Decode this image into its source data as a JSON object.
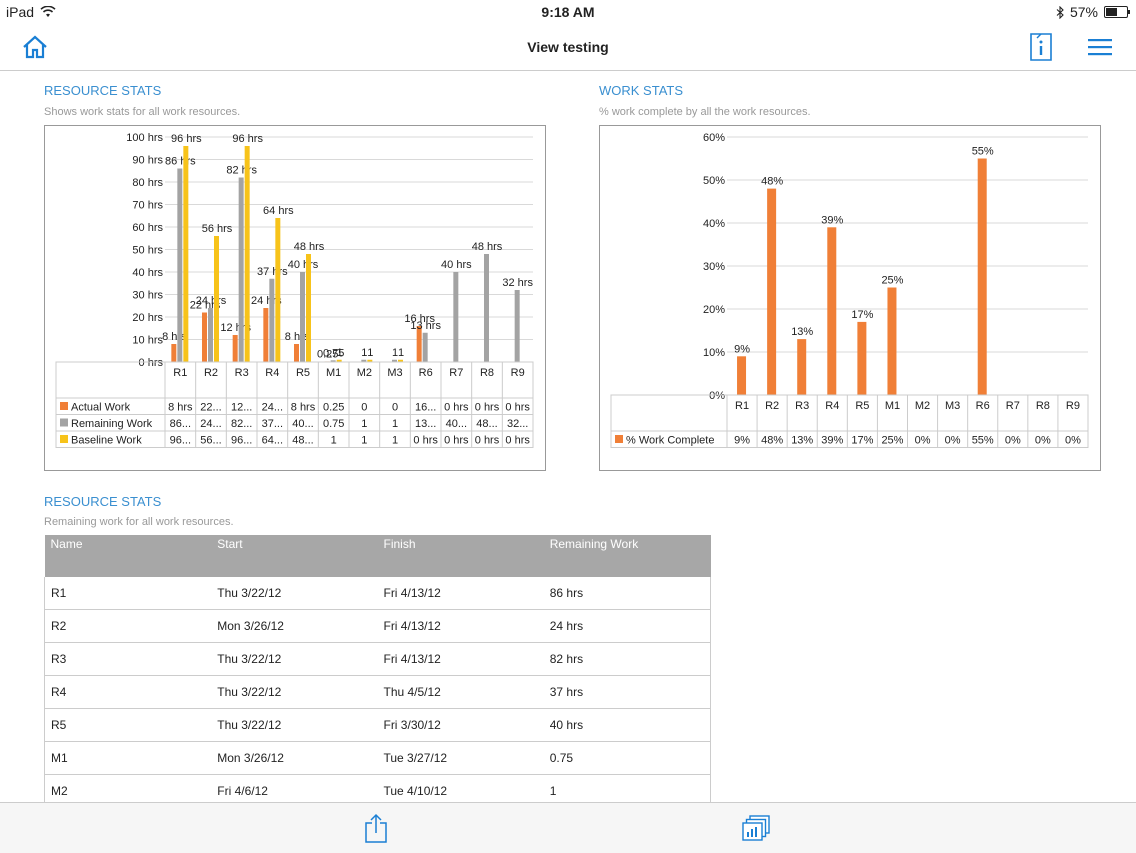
{
  "status": {
    "carrier": "iPad",
    "time": "9:18 AM",
    "battery": "57%",
    "battery_level": 0.57
  },
  "nav": {
    "title": "View testing"
  },
  "colors": {
    "accent": "#1a7fd4",
    "actual": "#f07f37",
    "remaining": "#a3a3a3",
    "baseline": "#f7c31a",
    "pct": "#f07f37"
  },
  "resource_chart": {
    "title": "RESOURCE STATS",
    "subtitle": "Shows work stats for all work resources.",
    "table_rows": [
      {
        "label": "Actual Work",
        "cells": [
          "8 hrs",
          "22...",
          "12...",
          "24...",
          "8 hrs",
          "0.25",
          "0",
          "0",
          "16...",
          "0 hrs",
          "0 hrs",
          "0 hrs"
        ]
      },
      {
        "label": "Remaining Work",
        "cells": [
          "86...",
          "24...",
          "82...",
          "37...",
          "40...",
          "0.75",
          "1",
          "1",
          "13...",
          "40...",
          "48...",
          "32..."
        ]
      },
      {
        "label": "Baseline Work",
        "cells": [
          "96...",
          "56...",
          "96...",
          "64...",
          "48...",
          "1",
          "1",
          "1",
          "0 hrs",
          "0 hrs",
          "0 hrs",
          "0 hrs"
        ]
      }
    ]
  },
  "work_chart": {
    "title": "WORK STATS",
    "subtitle": "% work complete by all the work resources.",
    "table_rows": [
      {
        "label": "% Work Complete",
        "cells": [
          "9%",
          "48%",
          "13%",
          "39%",
          "17%",
          "25%",
          "0%",
          "0%",
          "55%",
          "0%",
          "0%",
          "0%"
        ]
      }
    ]
  },
  "chart_data": [
    {
      "type": "bar",
      "categories": [
        "R1",
        "R2",
        "R3",
        "R4",
        "R5",
        "M1",
        "M2",
        "M3",
        "R6",
        "R7",
        "R8",
        "R9"
      ],
      "series": [
        {
          "name": "Actual Work",
          "values": [
            8,
            22,
            12,
            24,
            8,
            0.25,
            0,
            0,
            16,
            0,
            0,
            0
          ],
          "labels": [
            "8 hrs",
            "22 hrs",
            "12 hrs",
            "24 hrs",
            "8 hrs",
            "0.25",
            "",
            "",
            "16 hrs",
            "",
            "",
            ""
          ]
        },
        {
          "name": "Remaining Work",
          "values": [
            86,
            24,
            82,
            37,
            40,
            0.75,
            1,
            1,
            13,
            40,
            48,
            32
          ],
          "labels": [
            "86 hrs",
            "24 hrs",
            "82 hrs",
            "37 hrs",
            "40 hrs",
            "0.75",
            "1",
            "1",
            "13 hrs",
            "40 hrs",
            "48 hrs",
            "32 hrs"
          ]
        },
        {
          "name": "Baseline Work",
          "values": [
            96,
            56,
            96,
            64,
            48,
            1,
            1,
            1,
            0,
            0,
            0,
            0
          ],
          "labels": [
            "96 hrs",
            "56 hrs",
            "96 hrs",
            "64 hrs",
            "48 hrs",
            "1",
            "1",
            "1",
            "",
            "",
            "",
            ""
          ]
        }
      ],
      "yticks": [
        "0 hrs",
        "10 hrs",
        "20 hrs",
        "30 hrs",
        "40 hrs",
        "50 hrs",
        "60 hrs",
        "70 hrs",
        "80 hrs",
        "90 hrs",
        "100 hrs"
      ],
      "ylim": [
        0,
        100
      ],
      "grid": true,
      "legend": "bottom-left"
    },
    {
      "type": "bar",
      "categories": [
        "R1",
        "R2",
        "R3",
        "R4",
        "R5",
        "M1",
        "M2",
        "M3",
        "R6",
        "R7",
        "R8",
        "R9"
      ],
      "series": [
        {
          "name": "% Work Complete",
          "values": [
            9,
            48,
            13,
            39,
            17,
            25,
            0,
            0,
            55,
            0,
            0,
            0
          ],
          "labels": [
            "9%",
            "48%",
            "13%",
            "39%",
            "17%",
            "25%",
            "",
            "",
            "55%",
            "",
            "",
            ""
          ]
        }
      ],
      "yticks": [
        "0%",
        "10%",
        "20%",
        "30%",
        "40%",
        "50%",
        "60%"
      ],
      "ylim": [
        0,
        60
      ],
      "grid": true,
      "legend": "bottom-left"
    }
  ],
  "remaining_table": {
    "title": "RESOURCE STATS",
    "subtitle": "Remaining work for all work resources.",
    "headers": [
      "Name",
      "Start",
      "Finish",
      "Remaining Work"
    ],
    "rows": [
      [
        "R1",
        "Thu 3/22/12",
        "Fri 4/13/12",
        "86 hrs"
      ],
      [
        "R2",
        "Mon 3/26/12",
        "Fri 4/13/12",
        "24 hrs"
      ],
      [
        "R3",
        "Thu 3/22/12",
        "Fri 4/13/12",
        "82 hrs"
      ],
      [
        "R4",
        "Thu 3/22/12",
        "Thu 4/5/12",
        "37 hrs"
      ],
      [
        "R5",
        "Thu 3/22/12",
        "Fri 3/30/12",
        "40 hrs"
      ],
      [
        "M1",
        "Mon 3/26/12",
        "Tue 3/27/12",
        "0.75"
      ],
      [
        "M2",
        "Fri 4/6/12",
        "Tue 4/10/12",
        "1"
      ]
    ]
  },
  "icons": {
    "home": "home-icon",
    "info": "info-icon",
    "menu": "menu-icon",
    "share": "share-icon",
    "views": "views-icon"
  }
}
